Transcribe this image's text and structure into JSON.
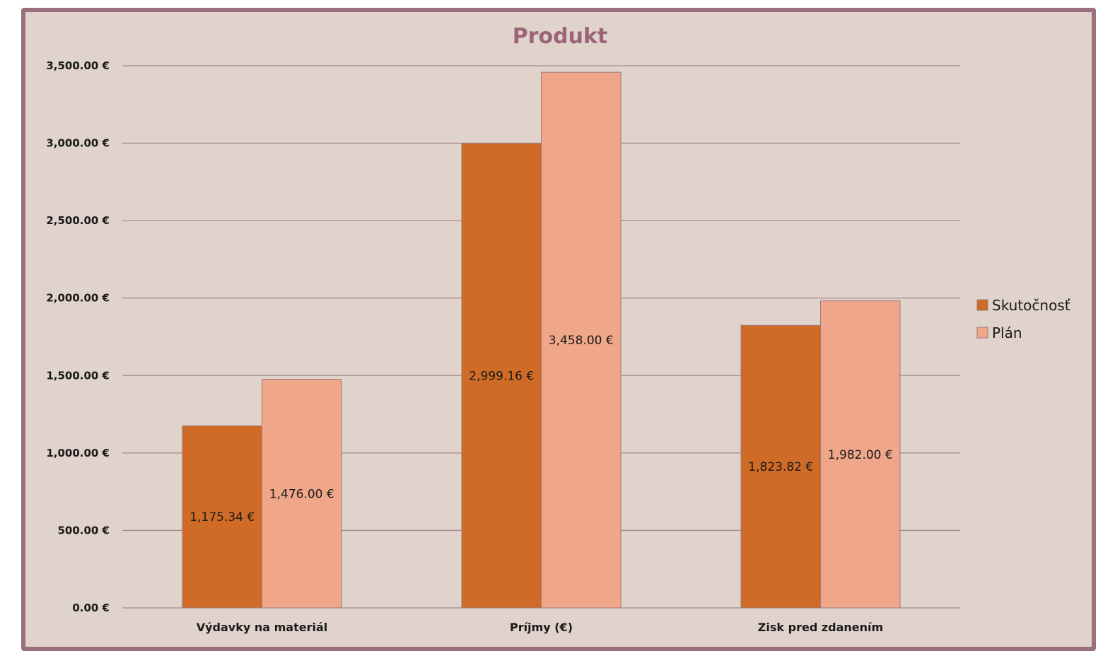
{
  "chart_data": {
    "type": "bar",
    "title": "Produkt",
    "xlabel": "",
    "ylabel": "",
    "categories": [
      "Výdavky na materiál",
      "Príjmy (€)",
      "Zisk pred zdanením"
    ],
    "series": [
      {
        "name": "Skutočnosť",
        "color": "#d06b27",
        "values": [
          1175.34,
          2999.16,
          1823.82
        ],
        "labels": [
          "1,175.34 €",
          "2,999.16 €",
          "1,823.82 €"
        ]
      },
      {
        "name": "Plán",
        "color": "#f0a689",
        "values": [
          1476.0,
          3458.0,
          1982.0
        ],
        "labels": [
          "1,476.00 €",
          "3,458.00 €",
          "1,982.00 €"
        ]
      }
    ],
    "ylim": [
      0,
      3500
    ],
    "yticks": [
      0,
      500,
      1000,
      1500,
      2000,
      2500,
      3000,
      3500
    ],
    "ytick_labels": [
      "0.00 €",
      "500.00 €",
      "1,000.00 €",
      "1,500.00 €",
      "2,000.00 €",
      "2,500.00 €",
      "3,000.00 €",
      "3,500.00 €"
    ],
    "grid": true,
    "legend_position": "right",
    "colors": {
      "background": "#dfd3cb",
      "frame": "#9b6f7d",
      "gridline": "#a88a8a",
      "title": "#9b6577"
    }
  }
}
